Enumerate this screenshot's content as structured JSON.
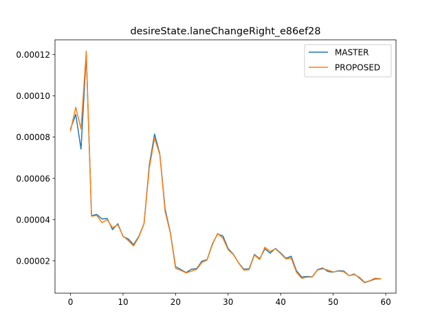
{
  "chart_data": {
    "type": "line",
    "title": "desireState.laneChangeRight_e86ef28",
    "xlabel": "",
    "ylabel": "",
    "xlim": [
      -2.95,
      61.95
    ],
    "ylim": [
      4.3e-06,
      0.0001272
    ],
    "x_ticks": [
      0,
      10,
      20,
      30,
      40,
      50,
      60
    ],
    "x_tick_labels": [
      "0",
      "10",
      "20",
      "30",
      "40",
      "50",
      "60"
    ],
    "y_ticks": [
      2e-05,
      4e-05,
      6e-05,
      8e-05,
      0.0001,
      0.00012
    ],
    "y_tick_labels": [
      "0.00002",
      "0.00004",
      "0.00006",
      "0.00008",
      "0.00010",
      "0.00012"
    ],
    "grid": false,
    "legend_position": "top-right",
    "x": [
      0,
      1,
      2,
      3,
      4,
      5,
      6,
      7,
      8,
      9,
      10,
      11,
      12,
      13,
      14,
      15,
      16,
      17,
      18,
      19,
      20,
      21,
      22,
      23,
      24,
      25,
      26,
      27,
      28,
      29,
      30,
      31,
      32,
      33,
      34,
      35,
      36,
      37,
      38,
      39,
      40,
      41,
      42,
      43,
      44,
      45,
      46,
      47,
      48,
      49,
      50,
      51,
      52,
      53,
      54,
      55,
      56,
      57,
      58,
      59
    ],
    "series": [
      {
        "name": "MASTER",
        "color": "#1f77b4",
        "values": [
          8.4e-05,
          9.1e-05,
          7.42e-05,
          0.00012,
          4.19e-05,
          4.25e-05,
          4.03e-05,
          4.05e-05,
          3.51e-05,
          3.8e-05,
          3.18e-05,
          3.06e-05,
          2.78e-05,
          3.18e-05,
          3.82e-05,
          6.64e-05,
          8.15e-05,
          7.18e-05,
          4.52e-05,
          3.38e-05,
          1.72e-05,
          1.58e-05,
          1.43e-05,
          1.59e-05,
          1.62e-05,
          1.98e-05,
          2.06e-05,
          2.82e-05,
          3.3e-05,
          3.21e-05,
          2.59e-05,
          2.32e-05,
          1.9e-05,
          1.59e-05,
          1.61e-05,
          2.31e-05,
          2.1e-05,
          2.58e-05,
          2.37e-05,
          2.6e-05,
          2.38e-05,
          2.12e-05,
          2.22e-05,
          1.52e-05,
          1.21e-05,
          1.24e-05,
          1.22e-05,
          1.57e-05,
          1.65e-05,
          1.48e-05,
          1.45e-05,
          1.52e-05,
          1.51e-05,
          1.28e-05,
          1.36e-05,
          1.16e-05,
          9.4e-06,
          1.03e-05,
          1.12e-05,
          1.12e-05
        ]
      },
      {
        "name": "PROPOSED",
        "color": "#ff7f0e",
        "values": [
          8.3e-05,
          9.45e-05,
          8.4e-05,
          0.0001217,
          4.16e-05,
          4.2e-05,
          3.85e-05,
          4e-05,
          3.6e-05,
          3.75e-05,
          3.2e-05,
          2.98e-05,
          2.72e-05,
          3.15e-05,
          3.8e-05,
          6.5e-05,
          7.95e-05,
          7.15e-05,
          4.4e-05,
          3.35e-05,
          1.63e-05,
          1.54e-05,
          1.41e-05,
          1.5e-05,
          1.58e-05,
          1.92e-05,
          2.04e-05,
          2.78e-05,
          3.33e-05,
          3.1e-05,
          2.54e-05,
          2.3e-05,
          1.89e-05,
          1.55e-05,
          1.57e-05,
          2.28e-05,
          2.06e-05,
          2.66e-05,
          2.46e-05,
          2.58e-05,
          2.35e-05,
          2.09e-05,
          2.13e-05,
          1.45e-05,
          1.15e-05,
          1.21e-05,
          1.21e-05,
          1.55e-05,
          1.61e-05,
          1.55e-05,
          1.46e-05,
          1.5e-05,
          1.47e-05,
          1.28e-05,
          1.33e-05,
          1.2e-05,
          9.6e-06,
          1.04e-05,
          1.16e-05,
          1.13e-05
        ]
      }
    ]
  }
}
